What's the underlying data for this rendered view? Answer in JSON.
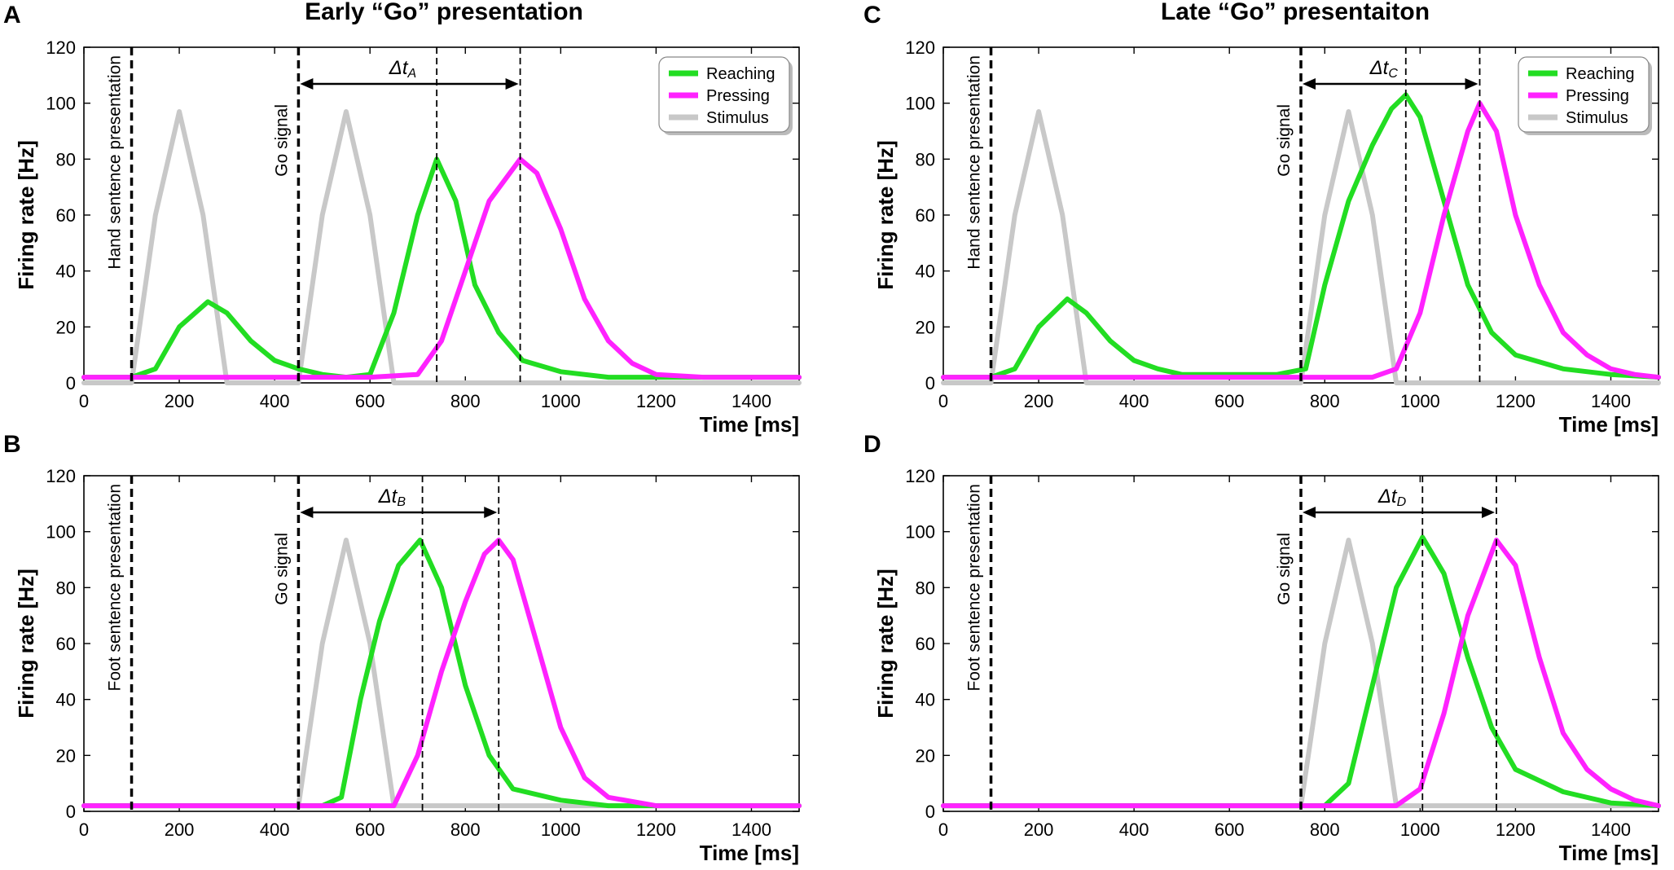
{
  "titles": {
    "left": "Early “Go” presentation",
    "right": "Late “Go” presentaiton"
  },
  "colors": {
    "reaching": "#22dd22",
    "pressing": "#ff22ff",
    "stimulus": "#c8c8c8"
  },
  "chart_data": [
    {
      "id": "A",
      "type": "line",
      "letter": "A",
      "xlabel": "Time  [ms]",
      "ylabel": "Firing  rate  [Hz]",
      "xlim": [
        0,
        1500
      ],
      "ylim": [
        0,
        120
      ],
      "xticks": [
        "0",
        "200",
        "400",
        "600",
        "800",
        "1000",
        "1200",
        "1400"
      ],
      "yticks": [
        "0",
        "20",
        "40",
        "60",
        "80",
        "100",
        "120"
      ],
      "legend": true,
      "legend_entries": [
        "Reaching",
        "Pressing",
        "Stimulus"
      ],
      "sentence_label": "Hand sentence presentation",
      "sentence_x": 100,
      "go_label": "Go  signal",
      "go_x": 450,
      "delta_label": "Δt",
      "delta_sub": "A",
      "delta_range": [
        450,
        915
      ],
      "peak_lines": [
        740,
        915
      ],
      "series": [
        {
          "name": "Stimulus",
          "color_key": "stimulus",
          "x": [
            0,
            100,
            150,
            200,
            250,
            300,
            400,
            450,
            500,
            550,
            600,
            650,
            700,
            1500
          ],
          "y": [
            0,
            0,
            60,
            97,
            60,
            0,
            0,
            0,
            60,
            97,
            60,
            0,
            0,
            0
          ]
        },
        {
          "name": "Reaching",
          "color_key": "reaching",
          "x": [
            0,
            100,
            150,
            200,
            260,
            300,
            350,
            400,
            450,
            500,
            550,
            600,
            650,
            700,
            740,
            780,
            820,
            870,
            920,
            1000,
            1100,
            1200,
            1500
          ],
          "y": [
            2,
            2,
            5,
            20,
            29,
            25,
            15,
            8,
            5,
            3,
            2,
            3,
            25,
            60,
            80,
            65,
            35,
            18,
            8,
            4,
            2,
            2,
            2
          ]
        },
        {
          "name": "Pressing",
          "color_key": "pressing",
          "x": [
            0,
            600,
            700,
            750,
            800,
            850,
            915,
            950,
            1000,
            1050,
            1100,
            1150,
            1200,
            1300,
            1500
          ],
          "y": [
            2,
            2,
            3,
            15,
            40,
            65,
            80,
            75,
            55,
            30,
            15,
            7,
            3,
            2,
            2
          ]
        }
      ]
    },
    {
      "id": "B",
      "type": "line",
      "letter": "B",
      "xlabel": "Time  [ms]",
      "ylabel": "Firing  rate  [Hz]",
      "xlim": [
        0,
        1500
      ],
      "ylim": [
        0,
        120
      ],
      "xticks": [
        "0",
        "200",
        "400",
        "600",
        "800",
        "1000",
        "1200",
        "1400"
      ],
      "yticks": [
        "0",
        "20",
        "40",
        "60",
        "80",
        "100",
        "120"
      ],
      "legend": false,
      "legend_entries": [],
      "sentence_label": "Foot sentence presentation",
      "sentence_x": 100,
      "go_label": "Go  signal",
      "go_x": 450,
      "delta_label": "Δt",
      "delta_sub": "B",
      "delta_range": [
        450,
        870
      ],
      "peak_lines": [
        710,
        870
      ],
      "series": [
        {
          "name": "Stimulus",
          "color_key": "stimulus",
          "x": [
            0,
            450,
            500,
            550,
            600,
            650,
            1500
          ],
          "y": [
            2,
            2,
            60,
            97,
            60,
            2,
            2
          ]
        },
        {
          "name": "Reaching",
          "color_key": "reaching",
          "x": [
            0,
            500,
            540,
            580,
            620,
            660,
            705,
            750,
            800,
            850,
            900,
            1000,
            1100,
            1500
          ],
          "y": [
            2,
            2,
            5,
            40,
            68,
            88,
            97,
            80,
            45,
            20,
            8,
            4,
            2,
            2
          ]
        },
        {
          "name": "Pressing",
          "color_key": "pressing",
          "x": [
            0,
            650,
            700,
            750,
            800,
            840,
            870,
            900,
            950,
            1000,
            1050,
            1100,
            1200,
            1500
          ],
          "y": [
            2,
            2,
            20,
            50,
            75,
            92,
            97,
            90,
            60,
            30,
            12,
            5,
            2,
            2
          ]
        }
      ]
    },
    {
      "id": "C",
      "type": "line",
      "letter": "C",
      "xlabel": "Time  [ms]",
      "ylabel": "Firing  rate  [Hz]",
      "xlim": [
        0,
        1500
      ],
      "ylim": [
        0,
        120
      ],
      "xticks": [
        "0",
        "200",
        "400",
        "600",
        "800",
        "1000",
        "1200",
        "1400"
      ],
      "yticks": [
        "0",
        "20",
        "40",
        "60",
        "80",
        "100",
        "120"
      ],
      "legend": true,
      "legend_entries": [
        "Reaching",
        "Pressing",
        "Stimulus"
      ],
      "sentence_label": "Hand sentence presentation",
      "sentence_x": 100,
      "go_label": "Go  signal",
      "go_x": 750,
      "delta_label": "Δt",
      "delta_sub": "C",
      "delta_range": [
        750,
        1125
      ],
      "peak_lines": [
        970,
        1125
      ],
      "series": [
        {
          "name": "Stimulus",
          "color_key": "stimulus",
          "x": [
            0,
            100,
            150,
            200,
            250,
            300,
            750,
            800,
            850,
            900,
            950,
            1500
          ],
          "y": [
            0,
            0,
            60,
            97,
            60,
            0,
            0,
            60,
            97,
            60,
            0,
            0
          ]
        },
        {
          "name": "Reaching",
          "color_key": "reaching",
          "x": [
            0,
            100,
            150,
            200,
            260,
            300,
            350,
            400,
            450,
            500,
            600,
            700,
            760,
            800,
            850,
            900,
            940,
            970,
            1000,
            1050,
            1100,
            1150,
            1200,
            1300,
            1400,
            1500
          ],
          "y": [
            2,
            2,
            5,
            20,
            30,
            25,
            15,
            8,
            5,
            3,
            3,
            3,
            5,
            35,
            65,
            85,
            98,
            103,
            95,
            65,
            35,
            18,
            10,
            5,
            3,
            2
          ]
        },
        {
          "name": "Pressing",
          "color_key": "pressing",
          "x": [
            0,
            900,
            950,
            1000,
            1050,
            1100,
            1125,
            1160,
            1200,
            1250,
            1300,
            1350,
            1400,
            1450,
            1500
          ],
          "y": [
            2,
            2,
            5,
            25,
            60,
            90,
            100,
            90,
            60,
            35,
            18,
            10,
            5,
            3,
            2
          ]
        }
      ]
    },
    {
      "id": "D",
      "type": "line",
      "letter": "D",
      "xlabel": "Time  [ms]",
      "ylabel": "Firing  rate  [Hz]",
      "xlim": [
        0,
        1500
      ],
      "ylim": [
        0,
        120
      ],
      "xticks": [
        "0",
        "200",
        "400",
        "600",
        "800",
        "1000",
        "1200",
        "1400"
      ],
      "yticks": [
        "0",
        "20",
        "40",
        "60",
        "80",
        "100",
        "120"
      ],
      "legend": false,
      "legend_entries": [],
      "sentence_label": "Foot sentence presentation",
      "sentence_x": 100,
      "go_label": "Go  signal",
      "go_x": 750,
      "delta_label": "Δt",
      "delta_sub": "D",
      "delta_range": [
        750,
        1160
      ],
      "peak_lines": [
        1005,
        1160
      ],
      "series": [
        {
          "name": "Stimulus",
          "color_key": "stimulus",
          "x": [
            0,
            750,
            800,
            850,
            900,
            950,
            1500
          ],
          "y": [
            2,
            2,
            60,
            97,
            60,
            2,
            2
          ]
        },
        {
          "name": "Reaching",
          "color_key": "reaching",
          "x": [
            0,
            800,
            850,
            900,
            950,
            1005,
            1050,
            1100,
            1150,
            1200,
            1300,
            1400,
            1500
          ],
          "y": [
            2,
            2,
            10,
            45,
            80,
            98,
            85,
            55,
            30,
            15,
            7,
            3,
            2
          ]
        },
        {
          "name": "Pressing",
          "color_key": "pressing",
          "x": [
            0,
            950,
            1000,
            1050,
            1100,
            1160,
            1200,
            1250,
            1300,
            1350,
            1400,
            1450,
            1500
          ],
          "y": [
            2,
            2,
            8,
            35,
            70,
            97,
            88,
            55,
            28,
            15,
            8,
            4,
            2
          ]
        }
      ]
    }
  ]
}
